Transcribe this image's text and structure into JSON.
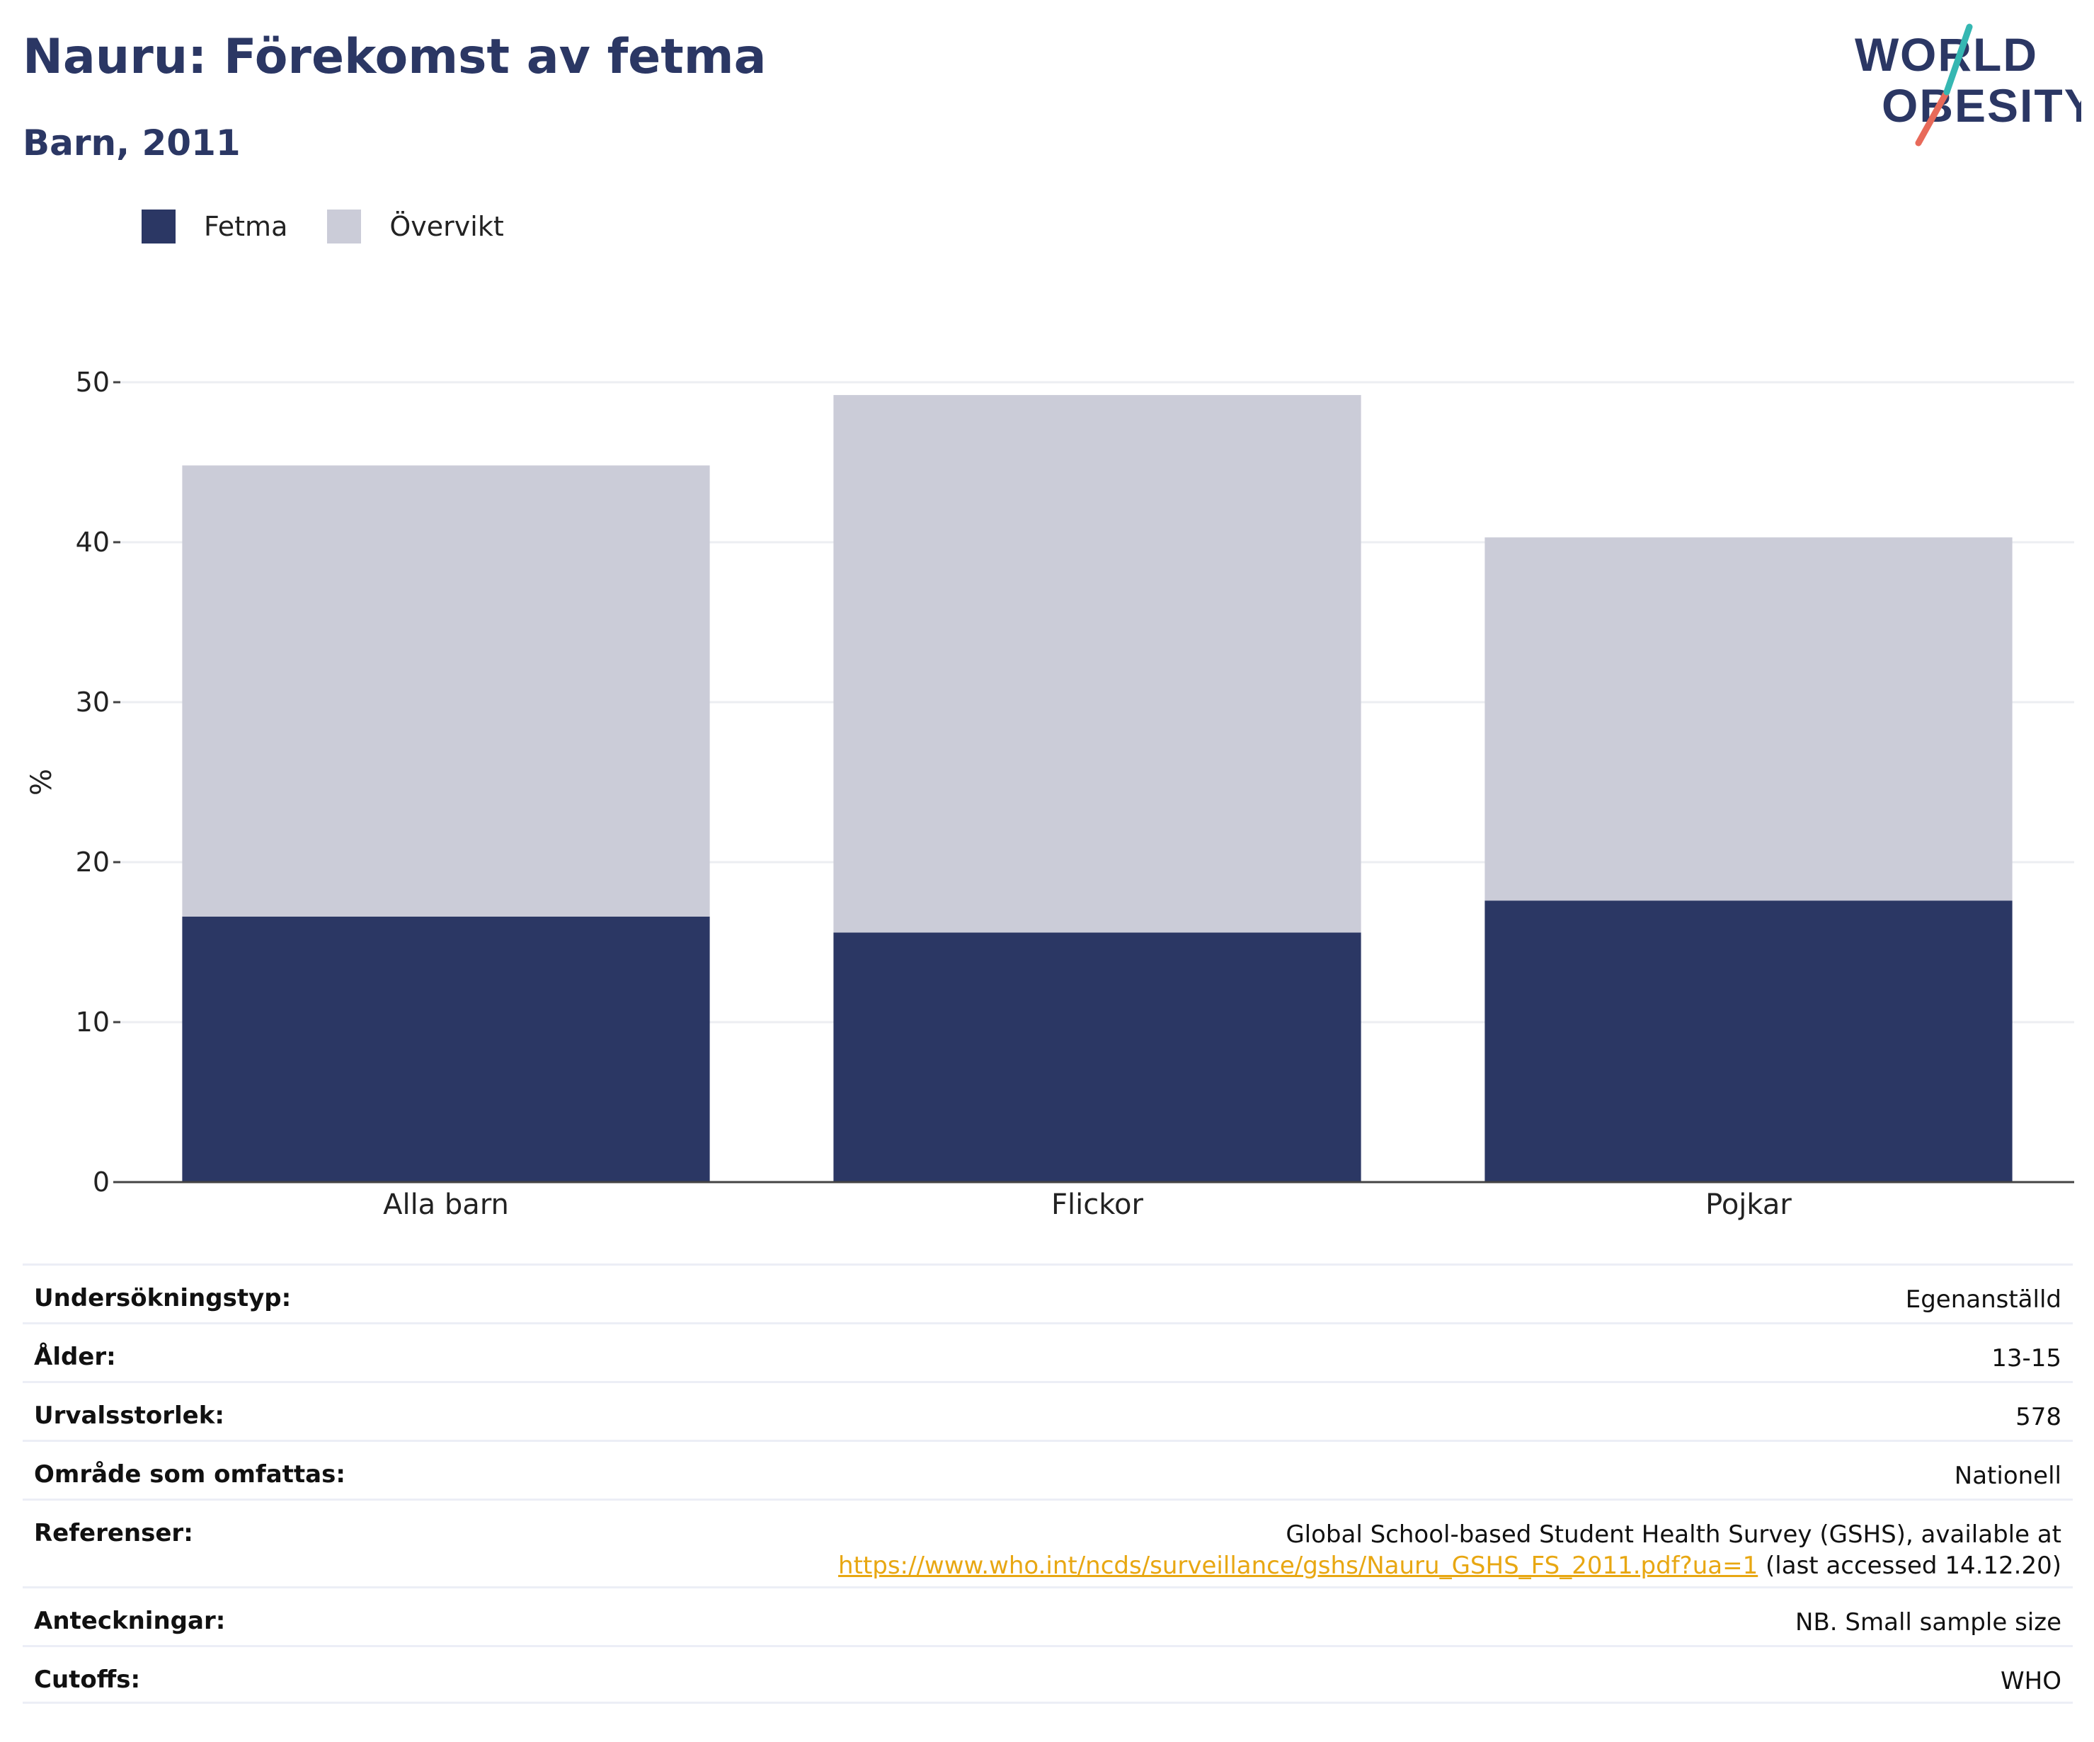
{
  "header": {
    "title": "Nauru: Förekomst av fetma",
    "subtitle": "Barn, 2011",
    "logo_text": "WORLD OBESITY"
  },
  "colors": {
    "fetma": "#2b3764",
    "overvikt": "#cbccd8",
    "title": "#2b3764",
    "link": "#e8a712"
  },
  "legend": [
    {
      "label": "Fetma",
      "color": "#2b3764"
    },
    {
      "label": "Övervikt",
      "color": "#cbccd8"
    }
  ],
  "chart_data": {
    "type": "bar",
    "stacked": true,
    "categories": [
      "Alla barn",
      "Flickor",
      "Pojkar"
    ],
    "series": [
      {
        "name": "Fetma",
        "values": [
          16.6,
          15.6,
          17.6
        ]
      },
      {
        "name": "Övervikt",
        "values": [
          28.2,
          33.6,
          22.7
        ]
      }
    ],
    "ylabel": "%",
    "ylim": [
      0,
      50
    ],
    "yticks": [
      0,
      10,
      20,
      30,
      40,
      50
    ],
    "grid": true,
    "legend_position": "top-left"
  },
  "info": {
    "rows": [
      {
        "key": "Undersökningstyp:",
        "value": "Egenanställd"
      },
      {
        "key": "Ålder:",
        "value": "13-15"
      },
      {
        "key": "Urvalsstorlek:",
        "value": "578"
      },
      {
        "key": "Område som omfattas:",
        "value": "Nationell"
      }
    ],
    "references": {
      "key": "Referenser:",
      "line1": "Global School-based Student Health Survey (GSHS), available at",
      "link": "https://www.who.int/ncds/surveillance/gshs/Nauru_GSHS_FS_2011.pdf?ua=1",
      "suffix": " (last accessed 14.12.20)"
    },
    "rows2": [
      {
        "key": "Anteckningar:",
        "value": "NB. Small sample size"
      },
      {
        "key": "Cutoffs:",
        "value": "WHO"
      }
    ]
  }
}
